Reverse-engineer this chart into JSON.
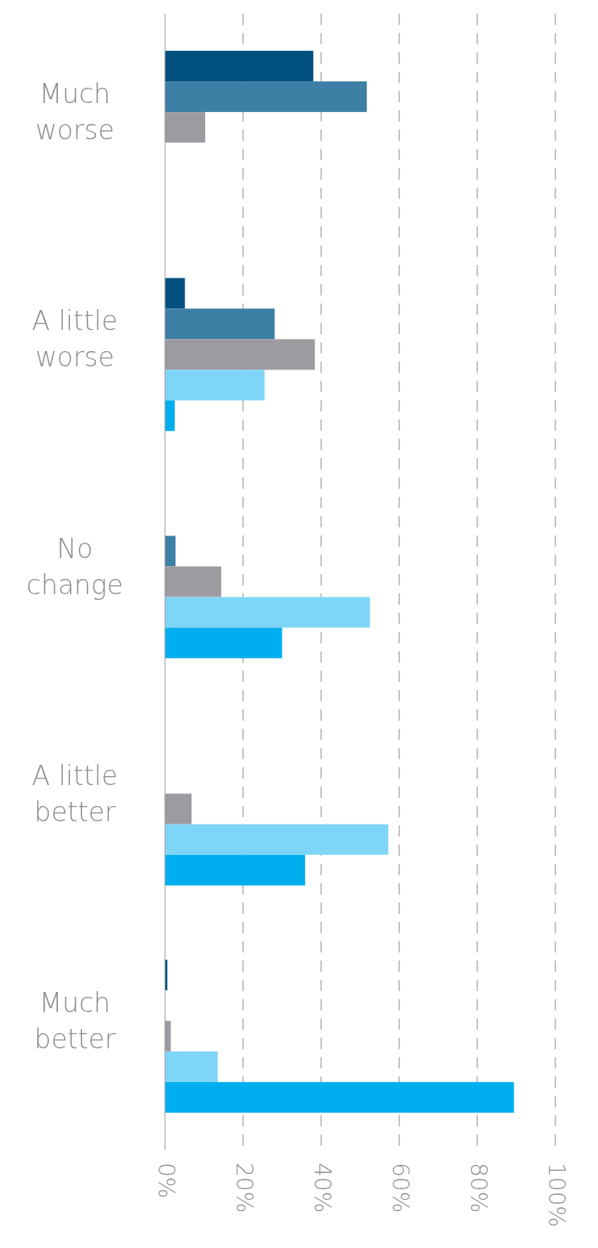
{
  "chart_data": {
    "type": "bar",
    "orientation": "horizontal",
    "categories": [
      "Much worse",
      "A little worse",
      "No change",
      "A little better",
      "Much better"
    ],
    "series": [
      {
        "color": "#00507f",
        "values": [
          38,
          5.1,
          null,
          null,
          0.6
        ]
      },
      {
        "color": "#3e7fa6",
        "values": [
          51.7,
          28.1,
          2.7,
          null,
          null
        ]
      },
      {
        "color": "#9d9b9f",
        "values": [
          10.3,
          38.4,
          14.4,
          6.8,
          1.5
        ]
      },
      {
        "color": "#7fd5f7",
        "values": [
          null,
          25.5,
          52.5,
          57.2,
          13.5
        ]
      },
      {
        "color": "#00aeef",
        "values": [
          null,
          2.5,
          30,
          35.9,
          89.4
        ]
      }
    ],
    "xlim": [
      0,
      100
    ],
    "xticks": [
      {
        "value": 0,
        "label": "0%"
      },
      {
        "value": 20,
        "label": "20%"
      },
      {
        "value": 40,
        "label": "40%"
      },
      {
        "value": 60,
        "label": "60%"
      },
      {
        "value": 80,
        "label": "80%"
      },
      {
        "value": 100,
        "label": "100%"
      }
    ],
    "grid": "x"
  }
}
